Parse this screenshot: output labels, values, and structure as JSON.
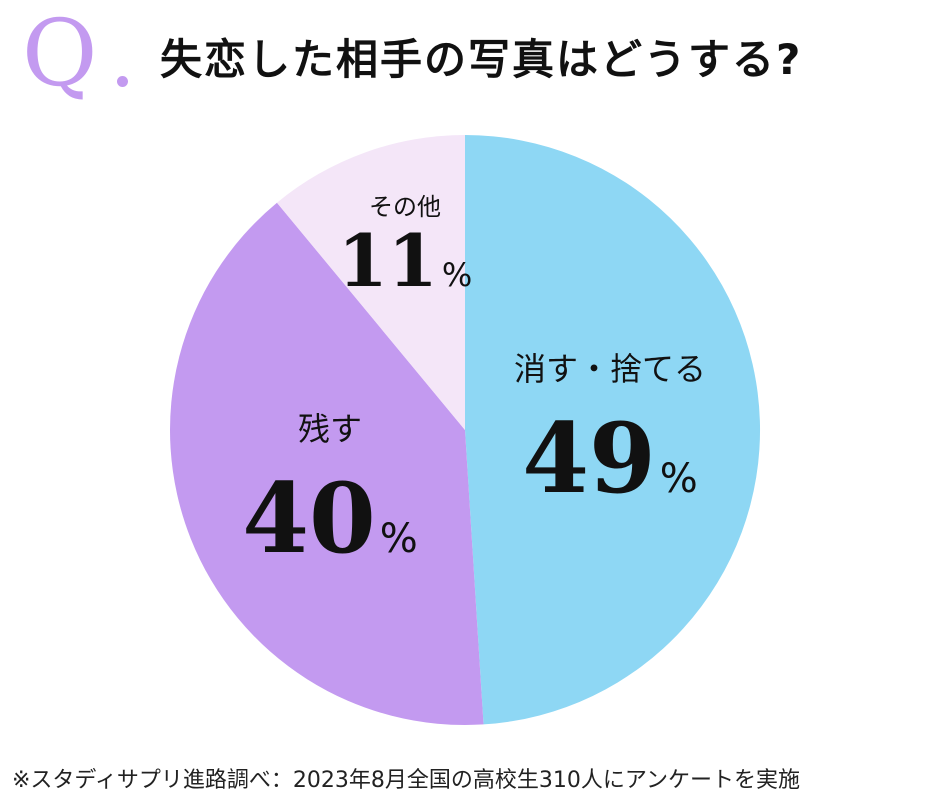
{
  "header": {
    "q_letter": "Q",
    "title": "失恋した相手の写真はどうする?"
  },
  "chart_data": {
    "type": "pie",
    "title": "失恋した相手の写真はどうする?",
    "slices": [
      {
        "label": "消す・捨てる",
        "value": 49,
        "value_text": "49",
        "unit": "%",
        "color": "#8ed7f4"
      },
      {
        "label": "残す",
        "value": 40,
        "value_text": "40",
        "unit": "%",
        "color": "#c39af0"
      },
      {
        "label": "その他",
        "value": 11,
        "value_text": "11",
        "unit": "%",
        "color": "#f4e6f8"
      }
    ]
  },
  "footnote": "※スタディサプリ進路調べ：2023年8月全国の高校生310人にアンケートを実施"
}
